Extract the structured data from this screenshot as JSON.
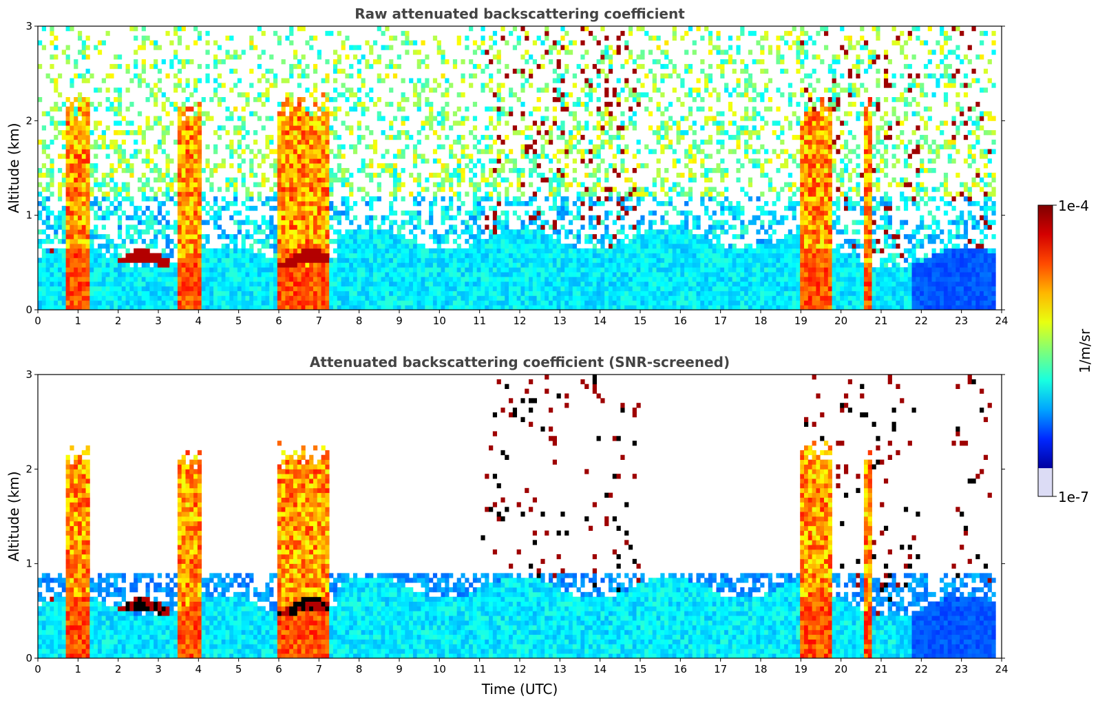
{
  "chart_data": [
    {
      "type": "heatmap",
      "title": "Raw attenuated backscattering coefficient",
      "xlabel": "",
      "ylabel": "Altitude (km)",
      "xlim": [
        0,
        24
      ],
      "ylim": [
        0,
        3
      ],
      "xticks": [
        "0",
        "1",
        "2",
        "3",
        "4",
        "5",
        "6",
        "7",
        "8",
        "9",
        "10",
        "11",
        "12",
        "13",
        "14",
        "15",
        "16",
        "17",
        "18",
        "19",
        "20",
        "21",
        "22",
        "23",
        "24"
      ],
      "yticks": [
        "0",
        "1",
        "2",
        "3"
      ],
      "time_range_hours": [
        0,
        23.85
      ],
      "screened": false,
      "layers": {
        "boundary_layer_top_km": 0.55,
        "low_cloud_base_km_0_to_7h": 0.5,
        "dense_aerosol_periods_h": [
          [
            0.7,
            1.3
          ],
          [
            3.5,
            4.1
          ],
          [
            6.0,
            7.3
          ],
          [
            19.0,
            19.8
          ],
          [
            20.6,
            20.8
          ]
        ],
        "high_cloud_periods_h": [
          [
            11.0,
            13.2
          ],
          [
            13.5,
            15.0
          ],
          [
            19.0,
            22.0
          ],
          [
            22.8,
            23.8
          ]
        ]
      }
    },
    {
      "type": "heatmap",
      "title": "Attenuated backscattering coefficient (SNR-screened)",
      "xlabel": "Time (UTC)",
      "ylabel": "Altitude (km)",
      "xlim": [
        0,
        24
      ],
      "ylim": [
        0,
        3
      ],
      "xticks": [
        "0",
        "1",
        "2",
        "3",
        "4",
        "5",
        "6",
        "7",
        "8",
        "9",
        "10",
        "11",
        "12",
        "13",
        "14",
        "15",
        "16",
        "17",
        "18",
        "19",
        "20",
        "21",
        "22",
        "23",
        "24"
      ],
      "yticks": [
        "0",
        "1",
        "2",
        "3"
      ],
      "time_range_hours": [
        0,
        23.85
      ],
      "screened": true,
      "layers": {
        "boundary_layer_top_km": 0.55,
        "low_cloud_base_km_0_to_7h": 0.5,
        "dense_aerosol_periods_h": [
          [
            0.7,
            1.3
          ],
          [
            3.5,
            4.1
          ],
          [
            6.0,
            7.3
          ],
          [
            19.0,
            19.8
          ],
          [
            20.6,
            20.8
          ]
        ],
        "high_cloud_periods_h": [
          [
            11.0,
            13.2
          ],
          [
            13.5,
            15.0
          ],
          [
            19.0,
            22.0
          ],
          [
            22.8,
            23.8
          ]
        ]
      }
    }
  ],
  "colorbar": {
    "max_label": "1e-4",
    "min_label": "1e-7",
    "unit_label": "1/m/sr",
    "colormap": [
      "#7f0000",
      "#d40000",
      "#ff4a00",
      "#ffb600",
      "#e8ff10",
      "#7dff7a",
      "#18ffe0",
      "#00a4ff",
      "#0028ff",
      "#0000a0"
    ],
    "under_color": "#dcdcf5"
  }
}
